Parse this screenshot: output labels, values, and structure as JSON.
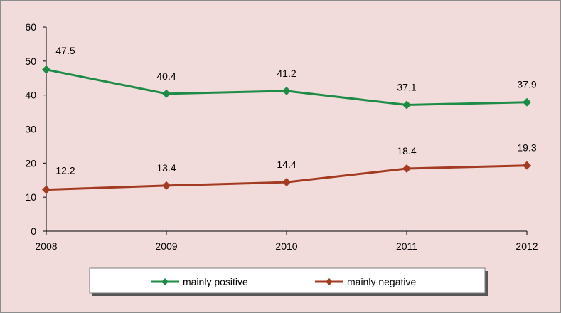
{
  "chart_data": {
    "type": "line",
    "title": "",
    "xlabel": "",
    "ylabel": "",
    "categories": [
      "2008",
      "2009",
      "2010",
      "2011",
      "2012"
    ],
    "ylim": [
      0,
      60
    ],
    "yticks": [
      0,
      10,
      20,
      30,
      40,
      50,
      60
    ],
    "grid": false,
    "legend_position": "bottom",
    "series": [
      {
        "name": "mainly positive",
        "values": [
          47.5,
          40.4,
          41.2,
          37.1,
          37.9
        ],
        "labels": [
          "47.5",
          "40.4",
          "41.2",
          "37.1",
          "37.9"
        ],
        "color": "#1e8c46"
      },
      {
        "name": "mainly negative",
        "values": [
          12.2,
          13.4,
          14.4,
          18.4,
          19.3
        ],
        "labels": [
          "12.2",
          "13.4",
          "14.4",
          "18.4",
          "19.3"
        ],
        "color": "#a33a22"
      }
    ]
  },
  "colors": {
    "background": "#f2dcdb",
    "axis": "#000000",
    "legend_background": "#ffffff",
    "legend_shadow": "#555555"
  }
}
